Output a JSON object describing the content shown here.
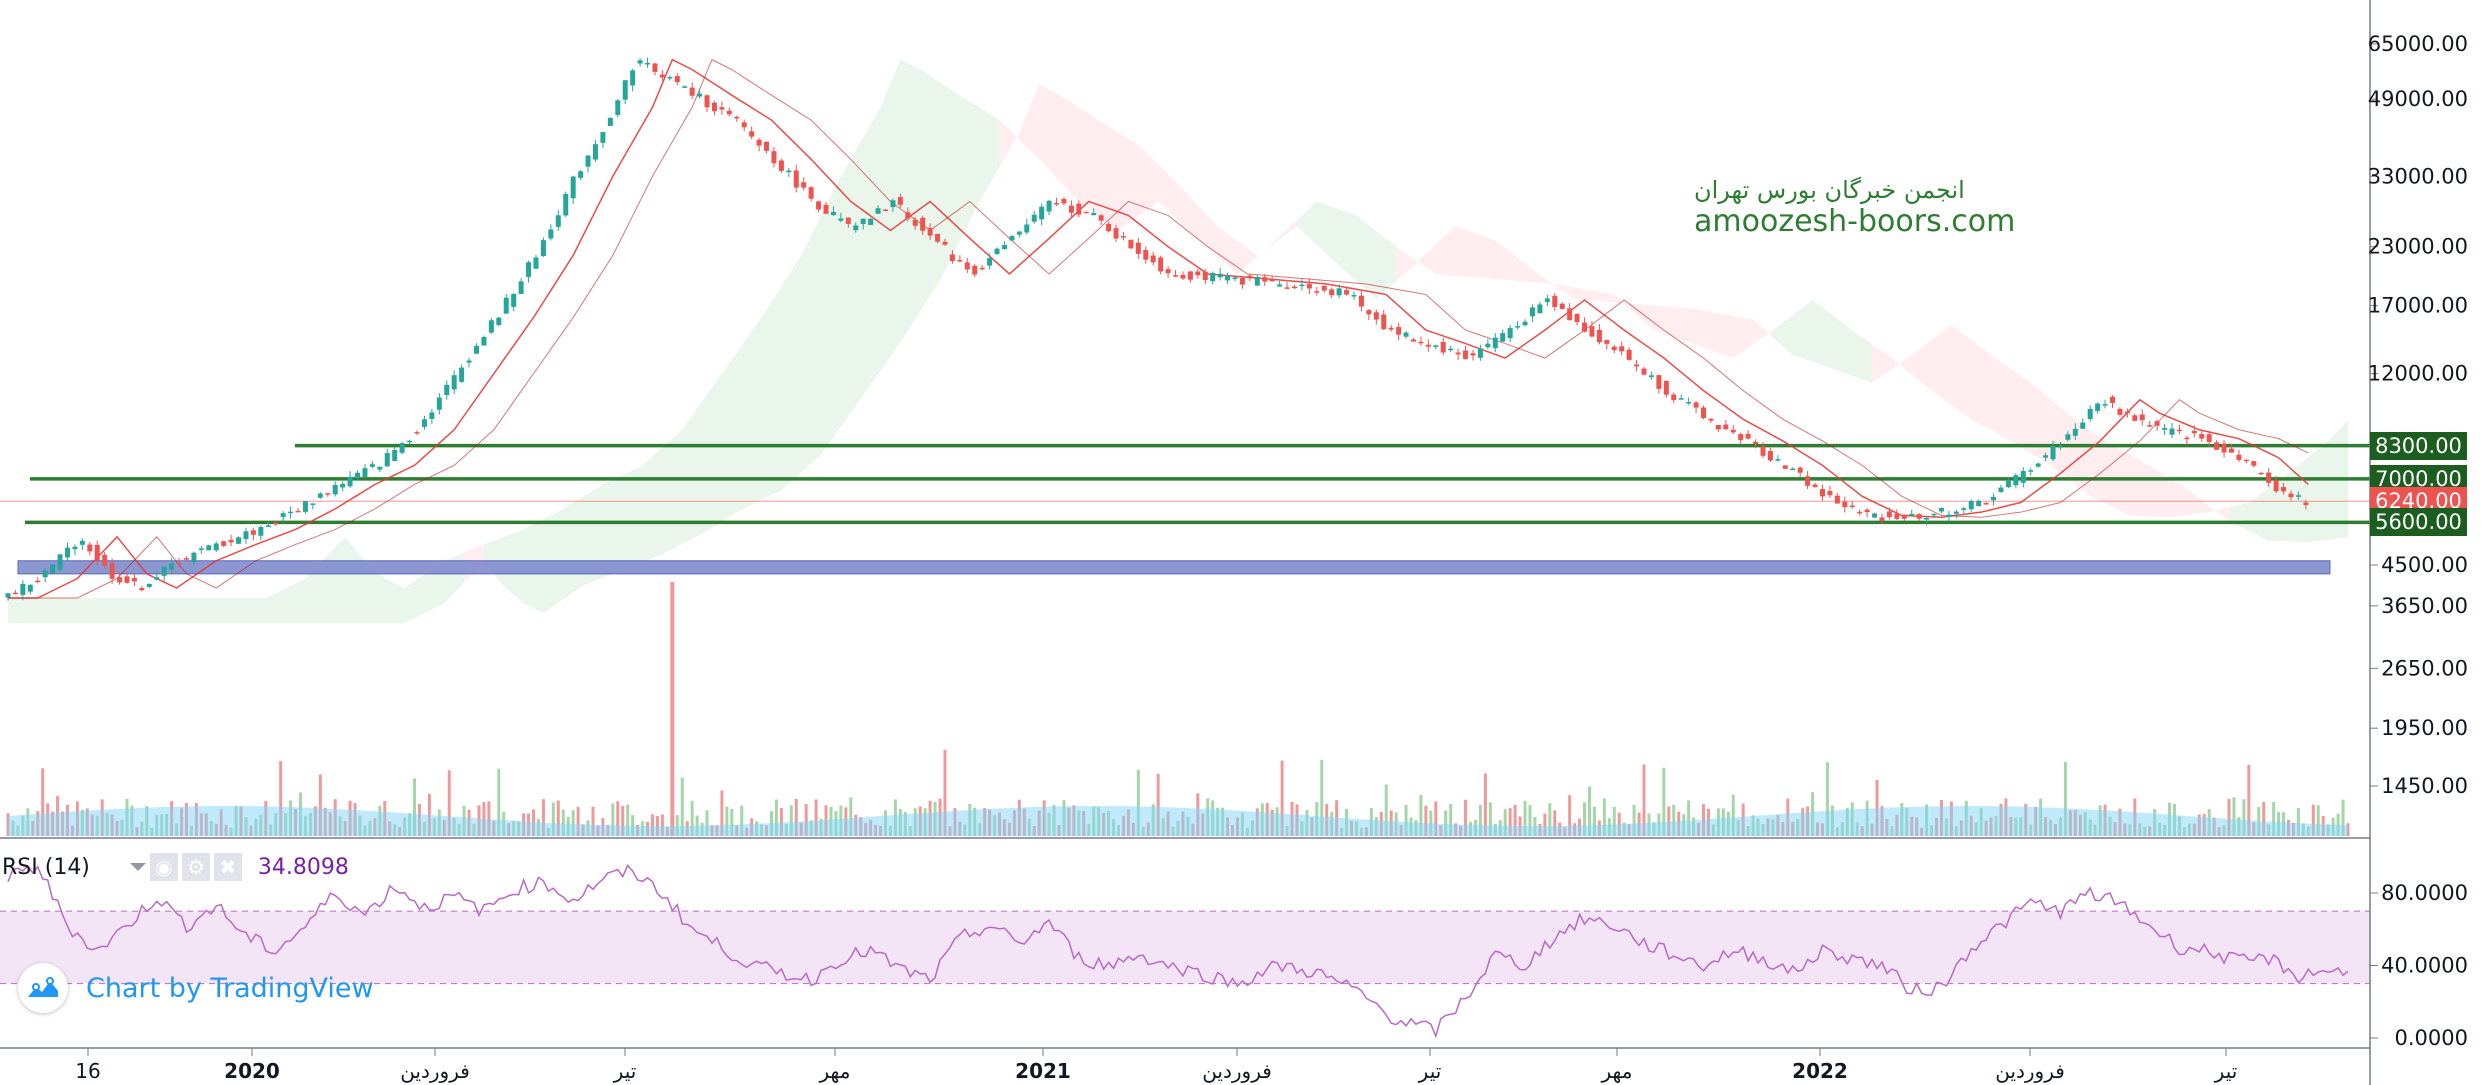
{
  "chart_data": [
    {
      "type": "candlestick",
      "title": "",
      "y_scale": "log",
      "ylim": [
        1150,
        75000
      ],
      "y_ticks": [
        "65000.00",
        "49000.00",
        "33000.00",
        "23000.00",
        "17000.00",
        "12000.00",
        "4500.00",
        "3650.00",
        "2650.00",
        "1950.00",
        "1450.00"
      ],
      "x_ticks": [
        {
          "label": "16",
          "bold": false
        },
        {
          "label": "2020",
          "bold": true
        },
        {
          "label": "فروردین",
          "bold": false
        },
        {
          "label": "تیر",
          "bold": false
        },
        {
          "label": "مهر",
          "bold": false
        },
        {
          "label": "2021",
          "bold": true
        },
        {
          "label": "فروردین",
          "bold": false
        },
        {
          "label": "تیر",
          "bold": false
        },
        {
          "label": "مهر",
          "bold": false
        },
        {
          "label": "2022",
          "bold": true
        },
        {
          "label": "فروردین",
          "bold": false
        },
        {
          "label": "تیر",
          "bold": false
        }
      ],
      "price_path": [
        [
          0,
          3800
        ],
        [
          4,
          4200
        ],
        [
          8,
          5200
        ],
        [
          11,
          4300
        ],
        [
          14,
          4000
        ],
        [
          18,
          4600
        ],
        [
          22,
          5000
        ],
        [
          26,
          5400
        ],
        [
          30,
          6000
        ],
        [
          34,
          6800
        ],
        [
          38,
          7500
        ],
        [
          42,
          9000
        ],
        [
          46,
          12000
        ],
        [
          50,
          16000
        ],
        [
          54,
          22000
        ],
        [
          58,
          33000
        ],
        [
          62,
          47000
        ],
        [
          64,
          60000
        ],
        [
          66,
          57000
        ],
        [
          70,
          50000
        ],
        [
          74,
          44000
        ],
        [
          78,
          36000
        ],
        [
          82,
          29000
        ],
        [
          86,
          25000
        ],
        [
          90,
          29000
        ],
        [
          94,
          24000
        ],
        [
          98,
          20000
        ],
        [
          102,
          24000
        ],
        [
          106,
          29000
        ],
        [
          110,
          27000
        ],
        [
          114,
          23000
        ],
        [
          118,
          20000
        ],
        [
          124,
          19500
        ],
        [
          130,
          19000
        ],
        [
          136,
          18000
        ],
        [
          140,
          15000
        ],
        [
          144,
          14000
        ],
        [
          148,
          13000
        ],
        [
          152,
          15000
        ],
        [
          156,
          17500
        ],
        [
          160,
          15000
        ],
        [
          164,
          13000
        ],
        [
          168,
          11000
        ],
        [
          172,
          9500
        ],
        [
          176,
          8500
        ],
        [
          180,
          7500
        ],
        [
          184,
          6400
        ],
        [
          188,
          5800
        ],
        [
          192,
          5750
        ],
        [
          196,
          5900
        ],
        [
          200,
          6200
        ],
        [
          204,
          7200
        ],
        [
          208,
          8500
        ],
        [
          212,
          10500
        ],
        [
          214,
          9800
        ],
        [
          218,
          9000
        ],
        [
          222,
          8600
        ],
        [
          226,
          7800
        ],
        [
          229,
          6800
        ],
        [
          232,
          6240
        ]
      ],
      "ichimoku_cloud": {
        "bullish_color": "#e8f5e9",
        "bearish_color": "#ffebee",
        "tenkan_kijun_color": "#e53935"
      },
      "horizontal_levels": [
        {
          "label": "8300.00",
          "value": 8300,
          "color": "#2e7d32"
        },
        {
          "label": "7000.00",
          "value": 7000,
          "color": "#2e7d32"
        },
        {
          "label": "6240.00",
          "value": 6240,
          "color": "#ef5350"
        },
        {
          "label": "5600.00",
          "value": 5600,
          "color": "#2e7d32"
        }
      ],
      "support_zone": {
        "low": 4300,
        "high": 4600,
        "color": "#7986cb"
      },
      "last_price": 6240
    },
    {
      "type": "line",
      "title": "RSI (14)",
      "current_value": "34.8098",
      "ylim": [
        0,
        100
      ],
      "y_ticks": [
        "80.0000",
        "40.0000",
        "0.0000"
      ],
      "band": [
        30,
        70
      ],
      "band_color": "#f3e5f5",
      "line_color": "#ba68c8",
      "values": [
        [
          0,
          88
        ],
        [
          3,
          95
        ],
        [
          6,
          62
        ],
        [
          9,
          48
        ],
        [
          12,
          62
        ],
        [
          15,
          78
        ],
        [
          18,
          62
        ],
        [
          21,
          73
        ],
        [
          24,
          56
        ],
        [
          27,
          48
        ],
        [
          30,
          62
        ],
        [
          33,
          80
        ],
        [
          36,
          68
        ],
        [
          39,
          84
        ],
        [
          42,
          72
        ],
        [
          45,
          78
        ],
        [
          48,
          70
        ],
        [
          51,
          82
        ],
        [
          54,
          86
        ],
        [
          57,
          76
        ],
        [
          60,
          88
        ],
        [
          63,
          92
        ],
        [
          66,
          80
        ],
        [
          69,
          60
        ],
        [
          72,
          50
        ],
        [
          75,
          40
        ],
        [
          78,
          36
        ],
        [
          81,
          32
        ],
        [
          84,
          44
        ],
        [
          87,
          48
        ],
        [
          90,
          38
        ],
        [
          93,
          32
        ],
        [
          96,
          55
        ],
        [
          99,
          62
        ],
        [
          102,
          52
        ],
        [
          105,
          64
        ],
        [
          108,
          44
        ],
        [
          111,
          40
        ],
        [
          114,
          46
        ],
        [
          117,
          40
        ],
        [
          120,
          36
        ],
        [
          124,
          30
        ],
        [
          128,
          40
        ],
        [
          132,
          36
        ],
        [
          136,
          26
        ],
        [
          140,
          10
        ],
        [
          144,
          4
        ],
        [
          147,
          22
        ],
        [
          150,
          46
        ],
        [
          153,
          40
        ],
        [
          156,
          56
        ],
        [
          159,
          66
        ],
        [
          162,
          62
        ],
        [
          165,
          52
        ],
        [
          168,
          46
        ],
        [
          171,
          40
        ],
        [
          174,
          48
        ],
        [
          177,
          44
        ],
        [
          180,
          36
        ],
        [
          183,
          48
        ],
        [
          186,
          44
        ],
        [
          189,
          40
        ],
        [
          192,
          26
        ],
        [
          195,
          28
        ],
        [
          198,
          50
        ],
        [
          201,
          62
        ],
        [
          204,
          75
        ],
        [
          207,
          70
        ],
        [
          210,
          80
        ],
        [
          213,
          74
        ],
        [
          216,
          62
        ],
        [
          219,
          50
        ],
        [
          222,
          48
        ],
        [
          225,
          42
        ],
        [
          228,
          44
        ],
        [
          231,
          34
        ],
        [
          234,
          38
        ],
        [
          236,
          34.8
        ]
      ]
    }
  ],
  "watermark": {
    "line1": "انجمن خبرگان بورس تهران",
    "line2": "amoozesh-boors.com"
  },
  "rsi_panel": {
    "label": "RSI (14)",
    "value": "34.8098"
  },
  "branding": {
    "text": "Chart by TradingView"
  },
  "colors": {
    "up": "#26a69a",
    "down": "#ef5350",
    "level_green": "#2e7d32",
    "volume_up": "#a5d6a7",
    "volume_down": "#ef9a9a",
    "volume_ma": "#81d4fa"
  }
}
